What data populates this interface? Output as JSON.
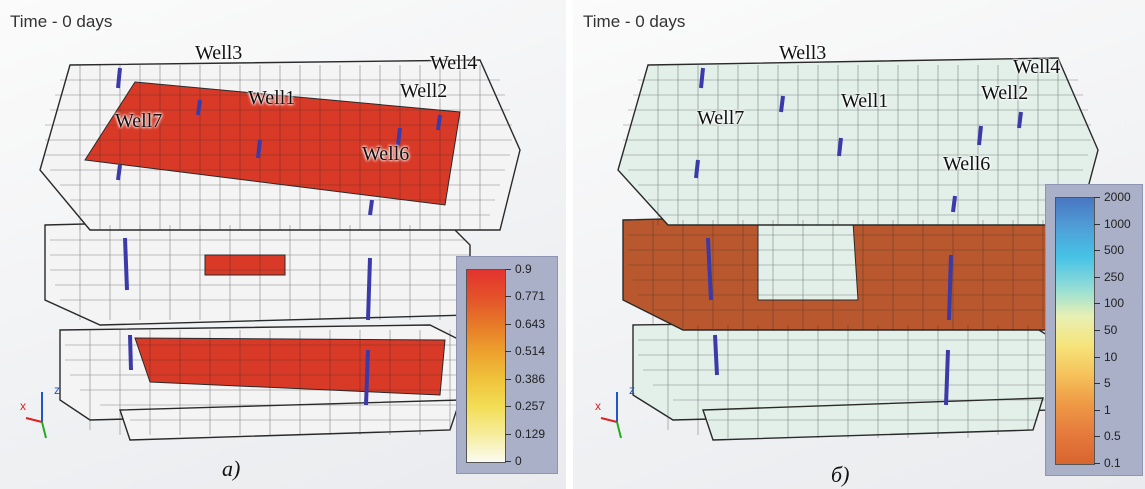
{
  "panels": [
    {
      "time_label": "Time - 0 days",
      "caption": "a)",
      "wells": [
        "Well3",
        "Well4",
        "Well1",
        "Well2",
        "Well7",
        "Well6"
      ],
      "legend": {
        "ticks": [
          "0.9",
          "0.771",
          "0.643",
          "0.514",
          "0.386",
          "0.257",
          "0.129",
          "0"
        ],
        "gradient": [
          "#e3332f",
          "#e4522a",
          "#e77a28",
          "#eda12e",
          "#f0c33b",
          "#f3dd56",
          "#f6ed9c",
          "#fbfbf2"
        ]
      }
    },
    {
      "time_label": "Time - 0 days",
      "caption": "б)",
      "wells": [
        "Well3",
        "Well4",
        "Well1",
        "Well2",
        "Well7",
        "Well6"
      ],
      "legend": {
        "ticks": [
          "2000",
          "1000",
          "500",
          "250",
          "100",
          "50",
          "10",
          "5",
          "1",
          "0.5",
          "0.1"
        ],
        "gradient": [
          "#4a76c0",
          "#4f9fd8",
          "#46c3e6",
          "#8fdcd8",
          "#e8f0b4",
          "#f6e47a",
          "#f5c15a",
          "#ee9845",
          "#e57a3c",
          "#d8642f"
        ]
      }
    }
  ],
  "colors": {
    "grid_line": "#2a2a2a",
    "cell_light_a": "#f4f4f4",
    "cell_light_b": "#e3f0ea",
    "cell_red": "#d93a27",
    "cell_brown": "#b9582e",
    "well_stem": "#3b3aa8"
  }
}
